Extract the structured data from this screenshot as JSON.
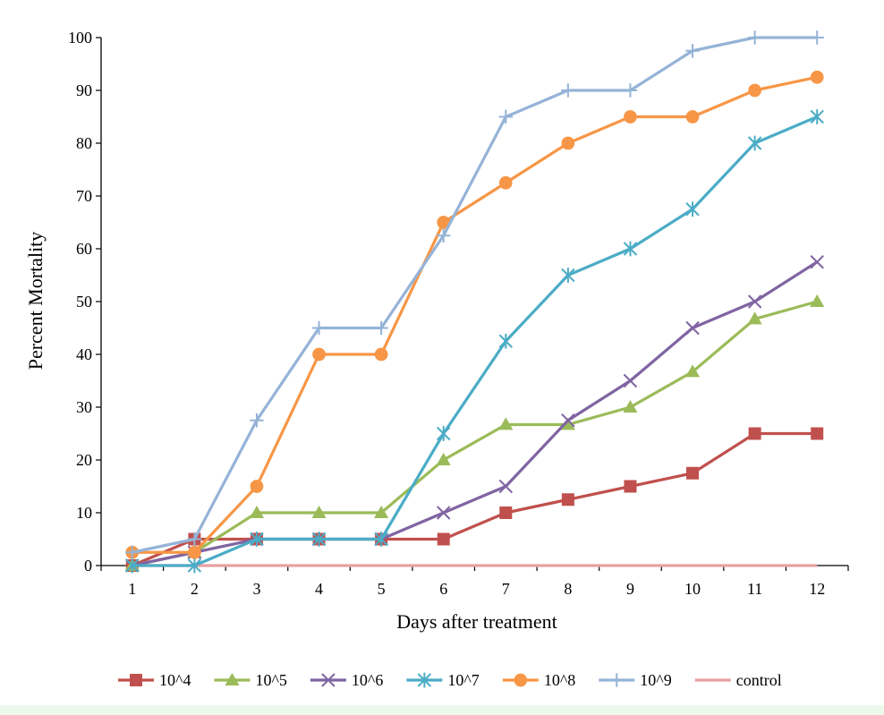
{
  "chart_data": {
    "type": "line",
    "x": [
      1,
      2,
      3,
      4,
      5,
      6,
      7,
      8,
      9,
      10,
      11,
      12
    ],
    "xlabel": "Days after treatment",
    "ylabel": "Percent Mortality",
    "xlim": [
      1,
      12
    ],
    "ylim": [
      0,
      100
    ],
    "yticks": [
      0,
      10,
      20,
      30,
      40,
      50,
      60,
      70,
      80,
      90,
      100
    ],
    "grid": false,
    "legend": "bottom",
    "series": [
      {
        "name": "10^4",
        "color": "#c0504d",
        "marker": "square",
        "values": [
          0,
          5,
          5,
          5,
          5,
          5,
          10,
          12.5,
          15,
          17.5,
          25,
          25
        ]
      },
      {
        "name": "10^5",
        "color": "#9bbb59",
        "marker": "triangle",
        "values": [
          0,
          2.5,
          10,
          10,
          10,
          20,
          26.7,
          26.7,
          30,
          36.7,
          46.7,
          50
        ]
      },
      {
        "name": "10^6",
        "color": "#8064a2",
        "marker": "x",
        "values": [
          0,
          2.5,
          5,
          5,
          5,
          10,
          15,
          27.5,
          35,
          45,
          50,
          57.5
        ]
      },
      {
        "name": "10^7",
        "color": "#4bacc6",
        "marker": "star",
        "values": [
          0,
          0,
          5,
          5,
          5,
          25,
          42.5,
          55,
          60,
          67.5,
          80,
          85
        ]
      },
      {
        "name": "10^8",
        "color": "#f79646",
        "marker": "circle",
        "values": [
          2.5,
          2.5,
          15,
          40,
          40,
          65,
          72.5,
          80,
          85,
          85,
          90,
          92.5
        ]
      },
      {
        "name": "10^9",
        "color": "#95b3d7",
        "marker": "plus",
        "values": [
          2.5,
          5,
          27.5,
          45,
          45,
          62.5,
          85,
          90,
          90,
          97.5,
          100,
          100
        ]
      },
      {
        "name": "control",
        "color": "#e6a1a1",
        "marker": "none",
        "values": [
          0,
          0,
          0,
          0,
          0,
          0,
          0,
          0,
          0,
          0,
          0,
          0
        ]
      }
    ]
  }
}
